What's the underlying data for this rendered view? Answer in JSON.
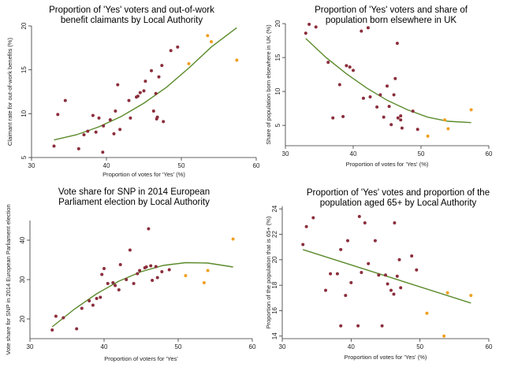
{
  "chart_data": [
    {
      "type": "scatter",
      "title": [
        "Proportion of 'Yes' voters and out-of-work",
        "benefit claimants by Local Authority"
      ],
      "xlabel": "Proportion of votes for 'Yes' (%)",
      "ylabel": "Claimant rate for out-of-work benefits (%)",
      "xlim": [
        30,
        60
      ],
      "ylim": [
        5,
        20
      ],
      "xticks": [
        30,
        40,
        50,
        60
      ],
      "yticks": [
        5,
        10,
        15,
        20
      ],
      "point_colors": {
        "main": "#8b2e3c",
        "highlight": "#f0a020"
      },
      "line_color": "#5a8a2a",
      "series": [
        {
          "name": "",
          "color": "#8b2e3c",
          "points": [
            [
              33,
              6.3
            ],
            [
              33.5,
              9.9
            ],
            [
              34.5,
              11.5
            ],
            [
              36.3,
              6
            ],
            [
              37,
              7.6
            ],
            [
              37.5,
              8
            ],
            [
              38.2,
              9.8
            ],
            [
              38.6,
              7.9
            ],
            [
              39.5,
              5.6
            ],
            [
              39.6,
              8.6
            ],
            [
              39,
              9.5
            ],
            [
              40.5,
              9.3
            ],
            [
              41,
              7.7
            ],
            [
              41.2,
              10.3
            ],
            [
              41.5,
              13.3
            ],
            [
              41.8,
              8.2
            ],
            [
              43,
              11.5
            ],
            [
              43.2,
              9.5
            ],
            [
              44,
              11.9
            ],
            [
              44.5,
              12.4
            ],
            [
              44.2,
              12
            ],
            [
              45,
              12.6
            ],
            [
              45.2,
              13.7
            ],
            [
              46,
              14.9
            ],
            [
              46.3,
              10.3
            ],
            [
              46.6,
              12.3
            ],
            [
              46.8,
              9.6
            ],
            [
              47,
              14.2
            ],
            [
              47.4,
              15.5
            ],
            [
              47.6,
              9.1
            ],
            [
              48.6,
              17.2
            ],
            [
              49.5,
              17.6
            ],
            [
              46.7,
              9.4
            ]
          ]
        },
        {
          "name": "",
          "color": "#f0a020",
          "points": [
            [
              51,
              15.7
            ],
            [
              53.5,
              18.9
            ],
            [
              54,
              18.2
            ],
            [
              57.4,
              16.1
            ]
          ]
        }
      ],
      "fit": [
        [
          33,
          7
        ],
        [
          36,
          7.6
        ],
        [
          39,
          8.5
        ],
        [
          42,
          9.7
        ],
        [
          45,
          11.2
        ],
        [
          48,
          13
        ],
        [
          51,
          15.2
        ],
        [
          54,
          17.6
        ],
        [
          57.4,
          19.8
        ]
      ]
    },
    {
      "type": "scatter",
      "title": [
        "Proportion of 'Yes' voters and share of",
        "population born elsewhere in UK"
      ],
      "xlabel": "Proportion of votes for 'Yes' (%)",
      "ylabel": "Share of population born elsewhere in UK (%)",
      "xlim": [
        30,
        60
      ],
      "ylim": [
        2,
        20
      ],
      "xticks": [
        30,
        40,
        50,
        60
      ],
      "yticks": [
        5,
        10,
        15,
        20
      ],
      "point_colors": {
        "main": "#8b2e3c",
        "highlight": "#f0a020"
      },
      "line_color": "#5a8a2a",
      "series": [
        {
          "name": "",
          "color": "#8b2e3c",
          "points": [
            [
              33,
              18.6
            ],
            [
              33.5,
              19.9
            ],
            [
              34.5,
              19.5
            ],
            [
              36.3,
              14.3
            ],
            [
              37,
              6.1
            ],
            [
              38,
              11
            ],
            [
              38.5,
              6.3
            ],
            [
              39,
              13.8
            ],
            [
              39.5,
              13.6
            ],
            [
              40,
              13.1
            ],
            [
              41.2,
              18.9
            ],
            [
              41.5,
              9
            ],
            [
              42.2,
              19.4
            ],
            [
              42.5,
              9.2
            ],
            [
              43.5,
              7.7
            ],
            [
              44,
              9.5
            ],
            [
              44.5,
              6.2
            ],
            [
              45,
              10.8
            ],
            [
              45.3,
              7.8
            ],
            [
              46,
              9.5
            ],
            [
              46.2,
              11.9
            ],
            [
              46.5,
              17.1
            ],
            [
              47,
              6.4
            ],
            [
              47.2,
              4.6
            ],
            [
              47,
              5.8
            ],
            [
              48.8,
              7.1
            ],
            [
              49.5,
              4.4
            ],
            [
              45.6,
              5.1
            ],
            [
              46.6,
              6.1
            ]
          ]
        },
        {
          "name": "",
          "color": "#f0a020",
          "points": [
            [
              51,
              3.4
            ],
            [
              53.5,
              5.8
            ],
            [
              54,
              4.5
            ],
            [
              57.4,
              7.3
            ]
          ]
        }
      ],
      "fit": [
        [
          33,
          17.8
        ],
        [
          36,
          15
        ],
        [
          39,
          12.6
        ],
        [
          42,
          10.5
        ],
        [
          45,
          8.7
        ],
        [
          48,
          7.3
        ],
        [
          51,
          6.2
        ],
        [
          54,
          5.6
        ],
        [
          57.4,
          5.4
        ]
      ]
    },
    {
      "type": "scatter",
      "title": [
        "Vote share for SNP in 2014 European",
        "Parliament election by Local Authority"
      ],
      "xlabel": "Proportion of voters for 'Yes'",
      "ylabel": "Vote share for SNP in 2014 European Parliament election",
      "xlim": [
        30,
        60
      ],
      "ylim": [
        15,
        45
      ],
      "xticks": [
        30,
        40,
        50,
        60
      ],
      "yticks": [
        20,
        30,
        40
      ],
      "point_colors": {
        "main": "#8b2e3c",
        "highlight": "#f0a020"
      },
      "line_color": "#5a8a2a",
      "series": [
        {
          "name": "",
          "color": "#8b2e3c",
          "points": [
            [
              33,
              17.2
            ],
            [
              33.5,
              20.7
            ],
            [
              34.5,
              20.3
            ],
            [
              36.3,
              17.5
            ],
            [
              37,
              22.7
            ],
            [
              38,
              24.6
            ],
            [
              38.5,
              23.5
            ],
            [
              39,
              25.2
            ],
            [
              39.5,
              25.5
            ],
            [
              39.7,
              31.3
            ],
            [
              40,
              32.8
            ],
            [
              40.5,
              29
            ],
            [
              41.2,
              29.2
            ],
            [
              41.5,
              28.5
            ],
            [
              42,
              27.4
            ],
            [
              42.2,
              33.8
            ],
            [
              43,
              30
            ],
            [
              43.5,
              37.5
            ],
            [
              44,
              29
            ],
            [
              44.5,
              31.5
            ],
            [
              44.8,
              32.3
            ],
            [
              45.5,
              33
            ],
            [
              45.7,
              33.2
            ],
            [
              46,
              42.9
            ],
            [
              46.3,
              33.5
            ],
            [
              46.5,
              29.8
            ],
            [
              47,
              33.3
            ],
            [
              47.2,
              30.5
            ],
            [
              47.8,
              32
            ],
            [
              48.8,
              32.5
            ]
          ]
        },
        {
          "name": "",
          "color": "#f0a020",
          "points": [
            [
              51,
              31
            ],
            [
              53.5,
              29.2
            ],
            [
              54,
              32.3
            ],
            [
              57.4,
              40.3
            ]
          ]
        }
      ],
      "fit": [
        [
          33,
          18
        ],
        [
          36,
          22.5
        ],
        [
          39,
          26.4
        ],
        [
          42,
          29.6
        ],
        [
          45,
          32
        ],
        [
          48,
          33.6
        ],
        [
          51,
          34.3
        ],
        [
          54,
          34.2
        ],
        [
          57.4,
          33.2
        ]
      ]
    },
    {
      "type": "scatter",
      "title": [
        "Proportion of 'Yes' votes and proportion of the",
        "population aged 65+ by Local Authority"
      ],
      "xlabel": "Proportion of votes for 'Yes' (%)",
      "ylabel": "Proportion of the population that is 65+ (%)",
      "xlim": [
        30,
        60
      ],
      "ylim": [
        13.8,
        24.2
      ],
      "xticks": [
        30,
        40,
        50,
        60
      ],
      "yticks": [
        14,
        16,
        18,
        20,
        22,
        24
      ],
      "point_colors": {
        "main": "#8b2e3c",
        "highlight": "#f0a020"
      },
      "line_color": "#5a8a2a",
      "series": [
        {
          "name": "",
          "color": "#8b2e3c",
          "points": [
            [
              33,
              21.2
            ],
            [
              33.5,
              22.6
            ],
            [
              34.5,
              23.3
            ],
            [
              36.3,
              17.6
            ],
            [
              37,
              18.9
            ],
            [
              38,
              18.9
            ],
            [
              38.5,
              14.8
            ],
            [
              38.5,
              20.8
            ],
            [
              39.2,
              17.2
            ],
            [
              39.5,
              21.5
            ],
            [
              40,
              18.2
            ],
            [
              41,
              14.8
            ],
            [
              41.2,
              23.4
            ],
            [
              41.5,
              19
            ],
            [
              42,
              22.9
            ],
            [
              42.5,
              19.7
            ],
            [
              43.5,
              21.5
            ],
            [
              44,
              18.8
            ],
            [
              44.5,
              14.8
            ],
            [
              45,
              18.8
            ],
            [
              45.3,
              18.1
            ],
            [
              45.8,
              17.6
            ],
            [
              46.2,
              17.3
            ],
            [
              46.3,
              22.9
            ],
            [
              46.7,
              18.7
            ],
            [
              47,
              20
            ],
            [
              47.2,
              17.8
            ],
            [
              48.8,
              20.3
            ],
            [
              49.5,
              19.2
            ]
          ]
        },
        {
          "name": "",
          "color": "#f0a020",
          "points": [
            [
              51,
              15.8
            ],
            [
              53.5,
              14
            ],
            [
              54,
              17.4
            ],
            [
              57.4,
              17.2
            ]
          ]
        }
      ],
      "fit": [
        [
          33,
          20.8
        ],
        [
          57.4,
          16.6
        ]
      ]
    }
  ]
}
